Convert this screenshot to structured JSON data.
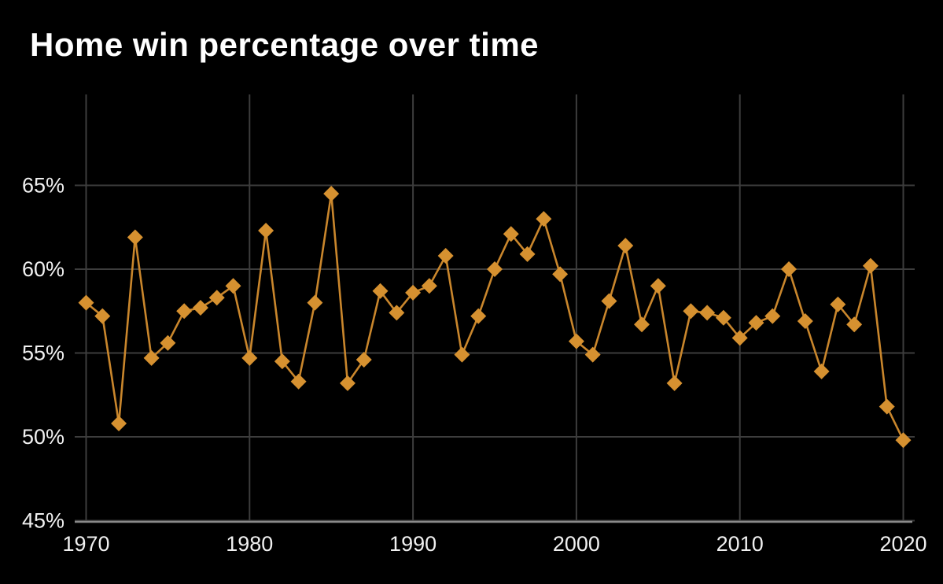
{
  "header": {
    "title": "Home win percentage over time"
  },
  "chart_data": {
    "type": "line",
    "title": "Home win percentage over time",
    "series_name": "Home win percentage",
    "marker": "diamond",
    "x": [
      1970,
      1971,
      1972,
      1973,
      1974,
      1975,
      1976,
      1977,
      1978,
      1979,
      1980,
      1981,
      1982,
      1983,
      1984,
      1985,
      1986,
      1987,
      1988,
      1989,
      1990,
      1991,
      1992,
      1993,
      1994,
      1995,
      1996,
      1997,
      1998,
      1999,
      2000,
      2001,
      2002,
      2003,
      2004,
      2005,
      2006,
      2007,
      2008,
      2009,
      2010,
      2011,
      2012,
      2013,
      2014,
      2015,
      2016,
      2017,
      2018,
      2019,
      2020
    ],
    "values": [
      58.0,
      57.2,
      50.8,
      61.9,
      54.7,
      55.6,
      57.5,
      57.7,
      58.3,
      59.0,
      54.7,
      62.3,
      54.5,
      53.3,
      58.0,
      64.5,
      53.2,
      54.6,
      58.7,
      57.4,
      58.6,
      59.0,
      60.8,
      54.9,
      57.2,
      60.0,
      62.1,
      60.9,
      63.0,
      59.7,
      55.7,
      54.9,
      58.1,
      61.4,
      56.7,
      59.0,
      53.2,
      57.5,
      57.4,
      57.1,
      55.9,
      56.8,
      57.2,
      60.0,
      56.9,
      53.9,
      57.9,
      56.7,
      60.2,
      51.8,
      49.8
    ],
    "x_ticks": [
      1970,
      1980,
      1990,
      2000,
      2010,
      2020
    ],
    "y_ticks": [
      45,
      50,
      55,
      60,
      65
    ],
    "y_tick_suffix": "%",
    "xlim": [
      1970,
      2020
    ],
    "ylim": [
      45,
      65
    ],
    "grid": true,
    "legend": "none",
    "colors": {
      "line": "#c9862c",
      "marker": "#d69130",
      "grid": "#3d3d3d",
      "axis": "#8a8a8a",
      "text": "#f0f0f0",
      "background": "#000000",
      "title": "#ffffff"
    }
  }
}
